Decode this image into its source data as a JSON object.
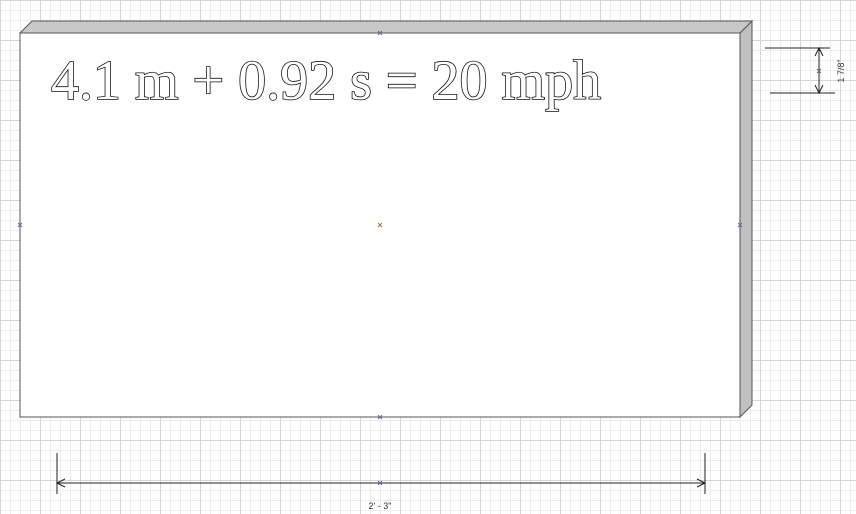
{
  "sign": {
    "text": "4.1 m + 0.92 s = 20 mph",
    "fill_color": "#ffffff",
    "edge_color": "#c0c0c0",
    "outline_color": "#555555"
  },
  "dimensions": {
    "width_label": "2' - 3\"",
    "thickness_label": "1 7/8\""
  },
  "grid": {
    "major_color": "#d6d6d6",
    "minor_color": "#ececec"
  }
}
